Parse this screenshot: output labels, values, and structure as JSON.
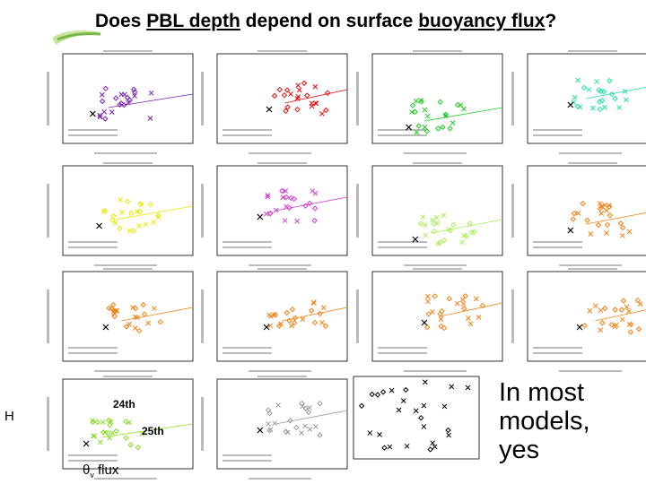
{
  "title": {
    "pre": "Does ",
    "pbl": "PBL depth",
    "mid": " depend on surface ",
    "flux": "buoyancy flux",
    "post": "?"
  },
  "conclusion": {
    "line1": "In most",
    "line2": "models,",
    "line3": "yes"
  },
  "annotations": {
    "h_label": "H",
    "label_24th": "24th",
    "label_25th": "25th",
    "theta_label": "θ",
    "theta_sub": "v",
    "flux_label": " flux"
  },
  "colors": {
    "purple": "#7a1fb0",
    "red": "#e01010",
    "green": "#22cc22",
    "teal": "#22ddaa",
    "yellow": "#e8e800",
    "magenta": "#d040d0",
    "lightgreen": "#aaee55",
    "orange": "#f08010",
    "limegreen": "#88dd22",
    "gray": "#999999"
  },
  "icons": {
    "logo": "green-swoosh-logo"
  }
}
